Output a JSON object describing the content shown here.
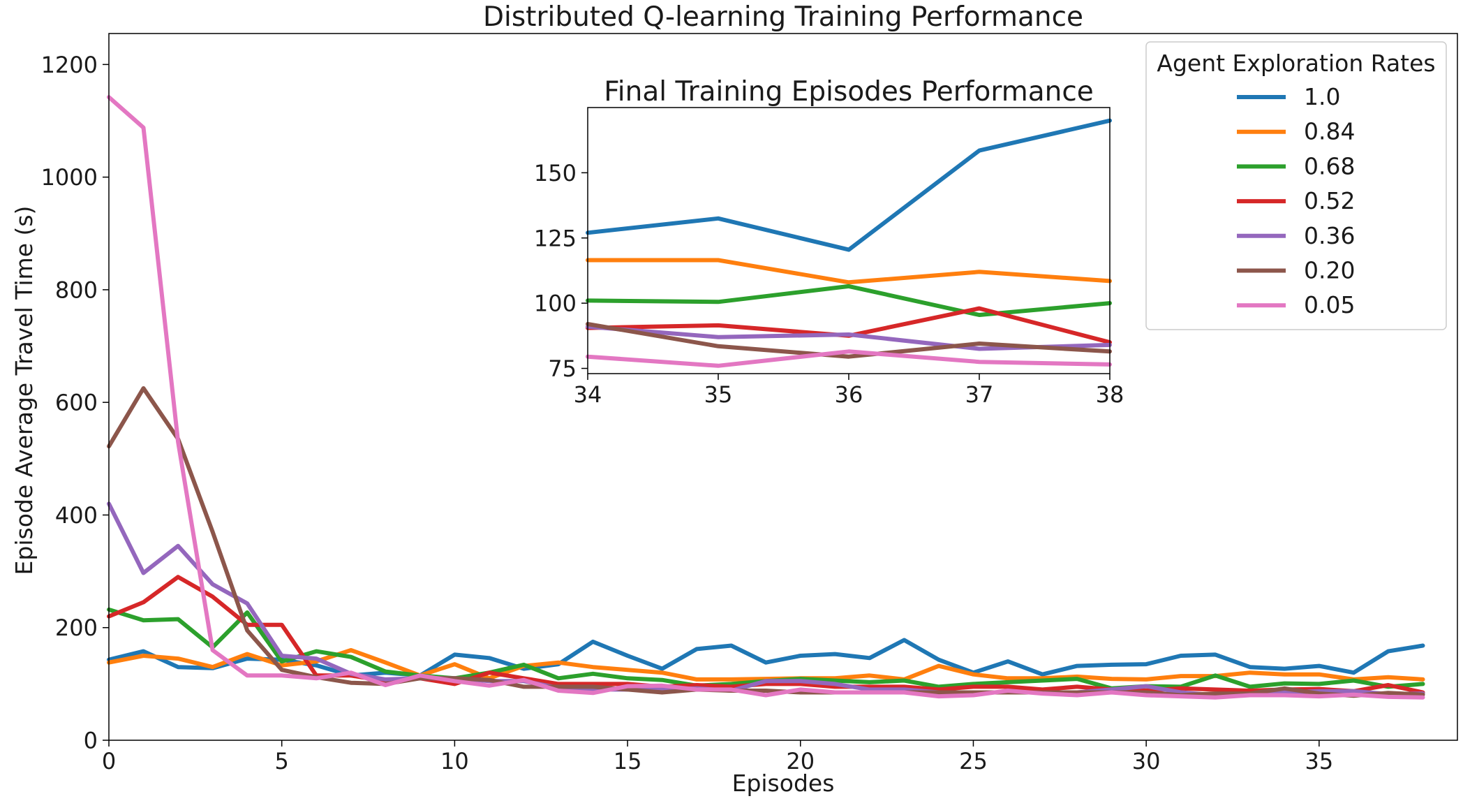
{
  "chart_data": [
    {
      "type": "line",
      "title": "Distributed Q-learning Training Performance",
      "xlabel": "Episodes",
      "ylabel": "Episode Average Travel Time (s)",
      "xlim": [
        0,
        39
      ],
      "ylim": [
        0,
        1255
      ],
      "xticks": [
        0,
        5,
        10,
        15,
        20,
        25,
        30,
        35
      ],
      "yticks": [
        0,
        200,
        400,
        600,
        800,
        1000,
        1200
      ],
      "grid": false,
      "legend": {
        "title": "Agent Exploration Rates",
        "placement": "top-right"
      },
      "x": [
        0,
        1,
        2,
        3,
        4,
        5,
        6,
        7,
        8,
        9,
        10,
        11,
        12,
        13,
        14,
        15,
        16,
        17,
        18,
        19,
        20,
        21,
        22,
        23,
        24,
        25,
        26,
        27,
        28,
        29,
        30,
        31,
        32,
        33,
        34,
        35,
        36,
        37,
        38
      ],
      "series": [
        {
          "name": "1.0",
          "color": "#1f77b4",
          "values": [
            143,
            158,
            130,
            128,
            145,
            143,
            133,
            115,
            120,
            115,
            152,
            146,
            127,
            135,
            175,
            150,
            127,
            162,
            168,
            138,
            150,
            153,
            146,
            178,
            143,
            120,
            140,
            117,
            132,
            134,
            135,
            150,
            152,
            130,
            127,
            132,
            120,
            158,
            168
          ]
        },
        {
          "name": "0.84",
          "color": "#ff7f0e",
          "values": [
            138,
            150,
            145,
            130,
            153,
            133,
            140,
            160,
            138,
            115,
            135,
            110,
            132,
            138,
            130,
            125,
            120,
            108,
            108,
            109,
            110,
            110,
            115,
            108,
            132,
            117,
            110,
            110,
            113,
            109,
            108,
            114,
            114,
            120,
            117,
            117,
            108,
            112,
            108
          ]
        },
        {
          "name": "0.68",
          "color": "#2ca02c",
          "values": [
            232,
            213,
            215,
            165,
            227,
            140,
            158,
            148,
            122,
            115,
            110,
            120,
            134,
            110,
            118,
            110,
            107,
            97,
            100,
            105,
            109,
            106,
            103,
            106,
            95,
            100,
            103,
            106,
            109,
            92,
            96,
            95,
            115,
            95,
            101,
            100,
            106,
            95,
            100
          ]
        },
        {
          "name": "0.52",
          "color": "#d62728",
          "values": [
            220,
            245,
            290,
            255,
            205,
            205,
            115,
            115,
            105,
            110,
            100,
            120,
            110,
            100,
            100,
            100,
            95,
            98,
            95,
            100,
            100,
            95,
            95,
            95,
            90,
            95,
            95,
            90,
            95,
            90,
            88,
            92,
            90,
            88,
            90,
            91,
            87,
            98,
            85
          ]
        },
        {
          "name": "0.36",
          "color": "#9467bd",
          "values": [
            420,
            297,
            345,
            277,
            243,
            150,
            145,
            118,
            108,
            110,
            110,
            105,
            105,
            93,
            90,
            90,
            90,
            92,
            88,
            105,
            105,
            100,
            90,
            90,
            85,
            85,
            85,
            85,
            85,
            90,
            96,
            85,
            80,
            82,
            85,
            87,
            87,
            82,
            83
          ]
        },
        {
          "name": "0.20",
          "color": "#8c564b",
          "values": [
            522,
            625,
            535,
            370,
            195,
            125,
            112,
            102,
            100,
            110,
            110,
            107,
            95,
            95,
            95,
            90,
            85,
            90,
            88,
            88,
            85,
            85,
            85,
            85,
            85,
            85,
            85,
            85,
            85,
            85,
            85,
            80,
            83,
            83,
            92,
            83,
            79,
            84,
            81
          ]
        },
        {
          "name": "0.05",
          "color": "#e377c2",
          "values": [
            1142,
            1088,
            530,
            160,
            115,
            115,
            110,
            120,
            98,
            115,
            105,
            97,
            107,
            88,
            84,
            96,
            97,
            90,
            90,
            80,
            90,
            85,
            85,
            85,
            78,
            80,
            88,
            83,
            80,
            85,
            80,
            78,
            76,
            80,
            80,
            78,
            81,
            77,
            76
          ]
        }
      ]
    },
    {
      "type": "line",
      "title": "Final Training Episodes Performance",
      "xlabel": "",
      "ylabel": "",
      "xlim": [
        34,
        38
      ],
      "ylim": [
        73,
        175
      ],
      "xticks": [
        34,
        35,
        36,
        37,
        38
      ],
      "yticks": [
        75,
        100,
        125,
        150
      ],
      "grid": false,
      "x": [
        34,
        35,
        36,
        37,
        38
      ],
      "series": [
        {
          "color": "#1f77b4",
          "values": [
            127,
            132.5,
            120.5,
            158.5,
            170
          ]
        },
        {
          "color": "#ff7f0e",
          "values": [
            116.5,
            116.5,
            108,
            112,
            108.5
          ]
        },
        {
          "color": "#2ca02c",
          "values": [
            101,
            100.5,
            106.5,
            95.5,
            100
          ]
        },
        {
          "color": "#d62728",
          "values": [
            90.5,
            91.5,
            87.5,
            98,
            85
          ]
        },
        {
          "color": "#9467bd",
          "values": [
            91,
            87,
            88,
            82.5,
            84
          ]
        },
        {
          "color": "#8c564b",
          "values": [
            92,
            83.5,
            79.5,
            84.5,
            81.5
          ]
        },
        {
          "color": "#e377c2",
          "values": [
            79.5,
            76,
            81.5,
            77.5,
            76.5
          ]
        }
      ]
    }
  ]
}
